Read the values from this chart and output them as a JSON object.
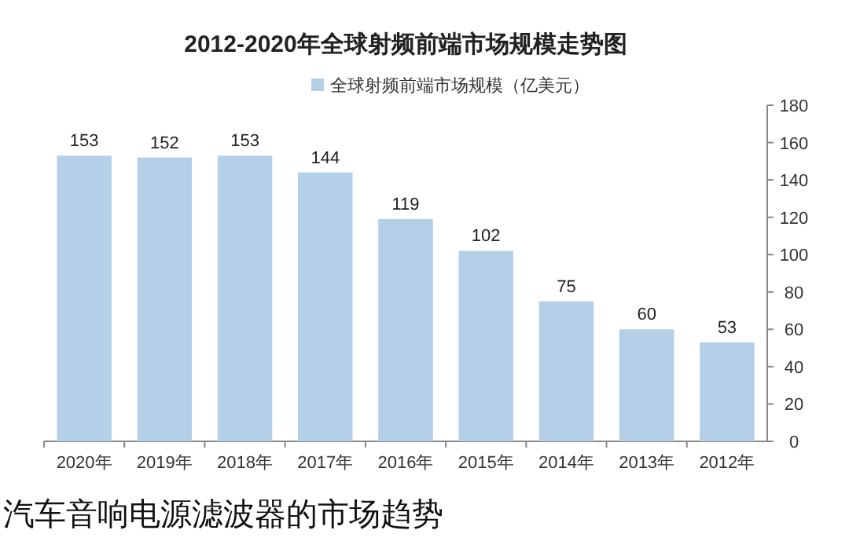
{
  "chart_data": {
    "type": "bar",
    "title": "2012-2020年全球射频前端市场规模走势图",
    "categories": [
      "2020年",
      "2019年",
      "2018年",
      "2017年",
      "2016年",
      "2015年",
      "2014年",
      "2013年",
      "2012年"
    ],
    "series": [
      {
        "name": "全球射频前端市场规模（亿美元）",
        "color": "#b4cfe8",
        "values": [
          153,
          152,
          153,
          144,
          119,
          102,
          75,
          60,
          53
        ]
      }
    ],
    "ylim": [
      0,
      180
    ],
    "yticks": [
      0,
      20,
      40,
      60,
      80,
      100,
      120,
      140,
      160,
      180
    ],
    "data_labels": true,
    "legend": "top",
    "annotations": [
      "汽车音响电源滤波器的市场趋势"
    ]
  }
}
